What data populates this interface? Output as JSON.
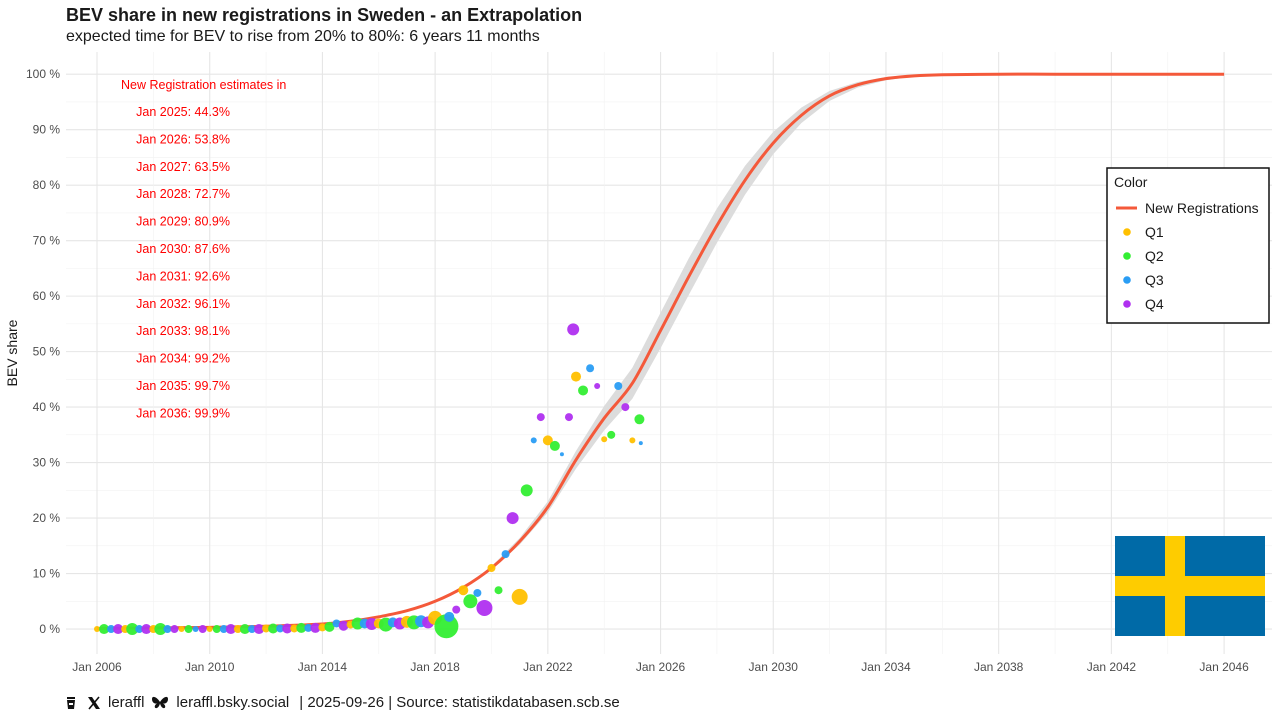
{
  "title": "BEV share in new registrations in Sweden - an Extrapolation",
  "subtitle": "expected time for BEV to rise from 20% to 80%: 6 years 11 months",
  "footer": {
    "handle_x": "leraffl",
    "handle_bsky": "leraffl.bsky.social",
    "date_source": "| 2025-09-26 | Source: statistikdatabasen.scb.se"
  },
  "colors": {
    "curve": "#f4593a",
    "ribbon": "#dcdcdc",
    "Q1": "#ffc000",
    "Q2": "#33ee33",
    "Q3": "#2a9df4",
    "Q4": "#b030f0",
    "annotation": "#ff0000",
    "flag_blue": "#006aa7",
    "flag_yellow": "#fecc00"
  },
  "chart_data": {
    "type": "scatter",
    "title": "BEV share in new registrations in Sweden - an Extrapolation",
    "subtitle": "expected time for BEV to rise from 20% to 80%: 6 years 11 months",
    "xlabel": "",
    "ylabel": "BEV share",
    "xlim": [
      2004.9,
      2047.7
    ],
    "ylim": [
      -4.5,
      104
    ],
    "x_ticks": [
      2006,
      2010,
      2014,
      2018,
      2022,
      2026,
      2030,
      2034,
      2038,
      2042,
      2046
    ],
    "x_tick_labels": [
      "Jan 2006",
      "Jan 2010",
      "Jan 2014",
      "Jan 2018",
      "Jan 2022",
      "Jan 2026",
      "Jan 2030",
      "Jan 2034",
      "Jan 2038",
      "Jan 2042",
      "Jan 2046"
    ],
    "y_ticks": [
      0,
      10,
      20,
      30,
      40,
      50,
      60,
      70,
      80,
      90,
      100
    ],
    "y_tick_labels": [
      "0 %",
      "10 %",
      "20 %",
      "30 %",
      "40 %",
      "50 %",
      "60 %",
      "70 %",
      "80 %",
      "90 %",
      "100 %"
    ],
    "grid": true,
    "legend": {
      "title": "Color",
      "position": "right",
      "entries": [
        "New Registrations",
        "Q1",
        "Q2",
        "Q3",
        "Q4"
      ]
    },
    "curve": {
      "name": "New Registrations",
      "x": [
        2006,
        2008,
        2010,
        2012,
        2014,
        2015,
        2016,
        2017,
        2018,
        2019,
        2020,
        2021,
        2022,
        2023,
        2024,
        2025,
        2026,
        2027,
        2028,
        2029,
        2030,
        2031,
        2032,
        2033,
        2034,
        2035,
        2036,
        2038,
        2040,
        2042,
        2044,
        2046
      ],
      "y": [
        0.1,
        0.2,
        0.3,
        0.5,
        0.9,
        1.4,
        2.2,
        3.3,
        5.0,
        7.5,
        11.0,
        15.8,
        22.0,
        30.5,
        38.0,
        44.3,
        53.8,
        63.5,
        72.7,
        80.9,
        87.6,
        92.6,
        96.1,
        98.1,
        99.2,
        99.7,
        99.9,
        100,
        100,
        100,
        100,
        100
      ],
      "ribbon_halfwidth": [
        0,
        0,
        0,
        0,
        0,
        0,
        0,
        0,
        0,
        0.1,
        0.3,
        0.6,
        1.0,
        1.6,
        2.2,
        2.8,
        3.2,
        3.3,
        3.1,
        2.6,
        2.0,
        1.4,
        0.9,
        0.5,
        0.3,
        0.1,
        0,
        0,
        0,
        0,
        0,
        0
      ]
    },
    "points": [
      {
        "x": 2006.0,
        "y": 0.0,
        "q": "Q1",
        "s": 3
      },
      {
        "x": 2006.25,
        "y": 0.0,
        "q": "Q2",
        "s": 5
      },
      {
        "x": 2006.5,
        "y": 0.0,
        "q": "Q3",
        "s": 4
      },
      {
        "x": 2006.75,
        "y": 0.0,
        "q": "Q4",
        "s": 5
      },
      {
        "x": 2007.0,
        "y": 0.0,
        "q": "Q1",
        "s": 4
      },
      {
        "x": 2007.25,
        "y": 0.0,
        "q": "Q2",
        "s": 6
      },
      {
        "x": 2007.5,
        "y": 0.0,
        "q": "Q3",
        "s": 4
      },
      {
        "x": 2007.75,
        "y": 0.0,
        "q": "Q4",
        "s": 5
      },
      {
        "x": 2008.0,
        "y": 0.0,
        "q": "Q1",
        "s": 4
      },
      {
        "x": 2008.25,
        "y": 0.0,
        "q": "Q2",
        "s": 6
      },
      {
        "x": 2008.5,
        "y": 0.0,
        "q": "Q3",
        "s": 4
      },
      {
        "x": 2008.75,
        "y": 0.0,
        "q": "Q4",
        "s": 4
      },
      {
        "x": 2009.0,
        "y": 0.0,
        "q": "Q1",
        "s": 3
      },
      {
        "x": 2009.25,
        "y": 0.0,
        "q": "Q2",
        "s": 4
      },
      {
        "x": 2009.5,
        "y": 0.0,
        "q": "Q3",
        "s": 3
      },
      {
        "x": 2009.75,
        "y": 0.0,
        "q": "Q4",
        "s": 4
      },
      {
        "x": 2010.0,
        "y": 0.0,
        "q": "Q1",
        "s": 3
      },
      {
        "x": 2010.25,
        "y": 0.0,
        "q": "Q2",
        "s": 4
      },
      {
        "x": 2010.5,
        "y": 0.0,
        "q": "Q3",
        "s": 4
      },
      {
        "x": 2010.75,
        "y": 0.0,
        "q": "Q4",
        "s": 5
      },
      {
        "x": 2011.0,
        "y": 0.0,
        "q": "Q1",
        "s": 4
      },
      {
        "x": 2011.25,
        "y": 0.0,
        "q": "Q2",
        "s": 5
      },
      {
        "x": 2011.5,
        "y": 0.0,
        "q": "Q3",
        "s": 4
      },
      {
        "x": 2011.75,
        "y": 0.0,
        "q": "Q4",
        "s": 5
      },
      {
        "x": 2012.0,
        "y": 0.1,
        "q": "Q1",
        "s": 4
      },
      {
        "x": 2012.25,
        "y": 0.1,
        "q": "Q2",
        "s": 5
      },
      {
        "x": 2012.5,
        "y": 0.1,
        "q": "Q3",
        "s": 4
      },
      {
        "x": 2012.75,
        "y": 0.1,
        "q": "Q4",
        "s": 5
      },
      {
        "x": 2013.0,
        "y": 0.1,
        "q": "Q1",
        "s": 4
      },
      {
        "x": 2013.25,
        "y": 0.2,
        "q": "Q2",
        "s": 5
      },
      {
        "x": 2013.5,
        "y": 0.2,
        "q": "Q3",
        "s": 4
      },
      {
        "x": 2013.75,
        "y": 0.2,
        "q": "Q4",
        "s": 5
      },
      {
        "x": 2014.0,
        "y": 0.3,
        "q": "Q1",
        "s": 4
      },
      {
        "x": 2014.25,
        "y": 0.4,
        "q": "Q2",
        "s": 5
      },
      {
        "x": 2014.5,
        "y": 1.0,
        "q": "Q3",
        "s": 4
      },
      {
        "x": 2014.75,
        "y": 0.6,
        "q": "Q4",
        "s": 5
      },
      {
        "x": 2015.0,
        "y": 0.8,
        "q": "Q1",
        "s": 4
      },
      {
        "x": 2015.25,
        "y": 1.0,
        "q": "Q2",
        "s": 6
      },
      {
        "x": 2015.5,
        "y": 1.0,
        "q": "Q3",
        "s": 5
      },
      {
        "x": 2015.75,
        "y": 0.9,
        "q": "Q4",
        "s": 6
      },
      {
        "x": 2016.0,
        "y": 1.0,
        "q": "Q1",
        "s": 5
      },
      {
        "x": 2016.25,
        "y": 0.8,
        "q": "Q2",
        "s": 7
      },
      {
        "x": 2016.5,
        "y": 1.2,
        "q": "Q3",
        "s": 5
      },
      {
        "x": 2016.75,
        "y": 1.0,
        "q": "Q4",
        "s": 6
      },
      {
        "x": 2017.0,
        "y": 1.3,
        "q": "Q1",
        "s": 6
      },
      {
        "x": 2017.25,
        "y": 1.2,
        "q": "Q2",
        "s": 7
      },
      {
        "x": 2017.5,
        "y": 1.4,
        "q": "Q3",
        "s": 6
      },
      {
        "x": 2017.75,
        "y": 1.2,
        "q": "Q4",
        "s": 6
      },
      {
        "x": 2018.0,
        "y": 2.0,
        "q": "Q1",
        "s": 7
      },
      {
        "x": 2018.4,
        "y": 0.5,
        "q": "Q2",
        "s": 12
      },
      {
        "x": 2018.5,
        "y": 2.2,
        "q": "Q3",
        "s": 5
      },
      {
        "x": 2018.75,
        "y": 3.5,
        "q": "Q4",
        "s": 4
      },
      {
        "x": 2019.0,
        "y": 7.0,
        "q": "Q1",
        "s": 5
      },
      {
        "x": 2019.25,
        "y": 5.0,
        "q": "Q2",
        "s": 7
      },
      {
        "x": 2019.5,
        "y": 6.5,
        "q": "Q3",
        "s": 4
      },
      {
        "x": 2019.75,
        "y": 3.8,
        "q": "Q4",
        "s": 8
      },
      {
        "x": 2020.0,
        "y": 11.0,
        "q": "Q1",
        "s": 4
      },
      {
        "x": 2020.25,
        "y": 7.0,
        "q": "Q2",
        "s": 4
      },
      {
        "x": 2020.5,
        "y": 13.5,
        "q": "Q3",
        "s": 4
      },
      {
        "x": 2020.75,
        "y": 20.0,
        "q": "Q4",
        "s": 6
      },
      {
        "x": 2021.0,
        "y": 5.8,
        "q": "Q1",
        "s": 8
      },
      {
        "x": 2021.25,
        "y": 25.0,
        "q": "Q2",
        "s": 6
      },
      {
        "x": 2021.5,
        "y": 34.0,
        "q": "Q3",
        "s": 3
      },
      {
        "x": 2021.75,
        "y": 38.2,
        "q": "Q4",
        "s": 4
      },
      {
        "x": 2022.0,
        "y": 34.0,
        "q": "Q1",
        "s": 5
      },
      {
        "x": 2022.25,
        "y": 33.0,
        "q": "Q2",
        "s": 5
      },
      {
        "x": 2022.5,
        "y": 31.5,
        "q": "Q3",
        "s": 2
      },
      {
        "x": 2022.75,
        "y": 38.2,
        "q": "Q4",
        "s": 4
      },
      {
        "x": 2022.9,
        "y": 54.0,
        "q": "Q4",
        "s": 6
      },
      {
        "x": 2023.0,
        "y": 45.5,
        "q": "Q1",
        "s": 5
      },
      {
        "x": 2023.25,
        "y": 43.0,
        "q": "Q2",
        "s": 5
      },
      {
        "x": 2023.5,
        "y": 47.0,
        "q": "Q3",
        "s": 4
      },
      {
        "x": 2023.75,
        "y": 43.8,
        "q": "Q4",
        "s": 3
      },
      {
        "x": 2024.0,
        "y": 34.2,
        "q": "Q1",
        "s": 3
      },
      {
        "x": 2024.25,
        "y": 35.0,
        "q": "Q2",
        "s": 4
      },
      {
        "x": 2024.5,
        "y": 43.8,
        "q": "Q3",
        "s": 4
      },
      {
        "x": 2024.75,
        "y": 40.0,
        "q": "Q4",
        "s": 4
      },
      {
        "x": 2025.0,
        "y": 34.0,
        "q": "Q1",
        "s": 3
      },
      {
        "x": 2025.25,
        "y": 37.8,
        "q": "Q2",
        "s": 5
      },
      {
        "x": 2025.3,
        "y": 33.5,
        "q": "Q3",
        "s": 2
      }
    ],
    "annotation_header": "New Registration estimates in",
    "annotations": [
      "Jan 2025: 44.3%",
      "Jan 2026: 53.8%",
      "Jan 2027: 63.5%",
      "Jan 2028: 72.7%",
      "Jan 2029: 80.9%",
      "Jan 2030: 87.6%",
      "Jan 2031: 92.6%",
      "Jan 2032: 96.1%",
      "Jan 2033: 98.1%",
      "Jan 2034: 99.2%",
      "Jan 2035: 99.7%",
      "Jan 2036: 99.9%"
    ]
  }
}
